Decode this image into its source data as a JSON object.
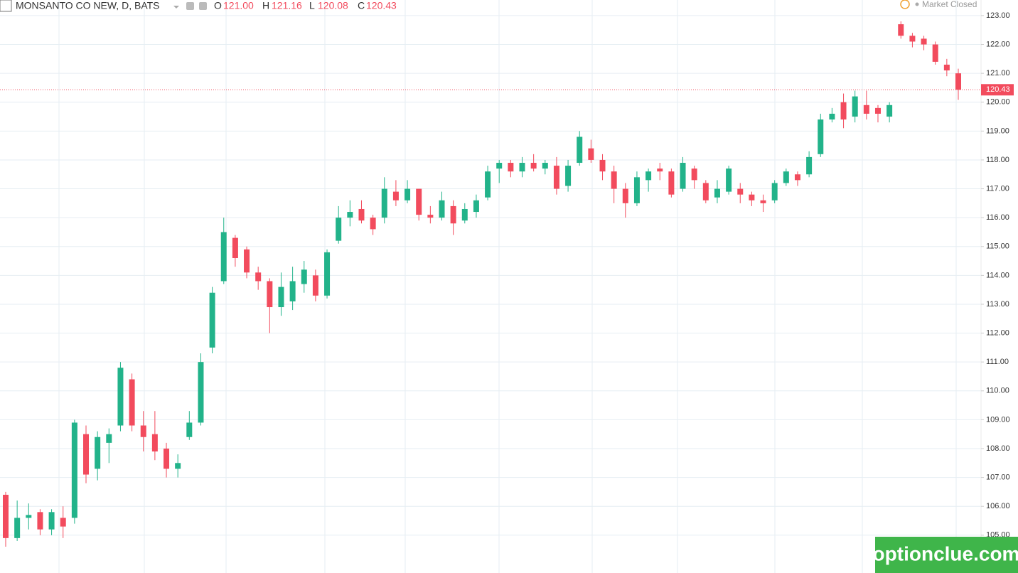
{
  "header": {
    "symbol": "MONSANTO CO NEW, D, BATS",
    "o_label": "O",
    "o_value": "121.00",
    "h_label": "H",
    "h_value": "121.16",
    "l_label": "L",
    "l_value": "120.08",
    "c_label": "C",
    "c_value": "120.43",
    "status": "Market Closed"
  },
  "watermark": "optionclue.com",
  "chart_data": {
    "type": "candlestick",
    "up_color": "#22b38a",
    "down_color": "#f24b5d",
    "grid": true,
    "ylim": [
      103.69,
      123.54
    ],
    "yticks": [
      {
        "value": 105,
        "label": "105.00"
      },
      {
        "value": 106,
        "label": "106.00"
      },
      {
        "value": 107,
        "label": "107.00"
      },
      {
        "value": 108,
        "label": "108.00"
      },
      {
        "value": 109,
        "label": "109.00"
      },
      {
        "value": 110,
        "label": "110.00"
      },
      {
        "value": 111,
        "label": "111.00"
      },
      {
        "value": 112,
        "label": "112.00"
      },
      {
        "value": 113,
        "label": "113.00"
      },
      {
        "value": 114,
        "label": "114.00"
      },
      {
        "value": 115,
        "label": "115.00"
      },
      {
        "value": 116,
        "label": "116.00"
      },
      {
        "value": 117,
        "label": "117.00"
      },
      {
        "value": 118,
        "label": "118.00"
      },
      {
        "value": 119,
        "label": "119.00"
      },
      {
        "value": 120,
        "label": "120.00"
      },
      {
        "value": 121,
        "label": "121.00"
      },
      {
        "value": 122,
        "label": "122.00"
      },
      {
        "value": 123,
        "label": "123.00"
      }
    ],
    "open": [
      106.4,
      104.9,
      105.6,
      105.8,
      105.2,
      105.6,
      105.6,
      108.5,
      107.3,
      108.2,
      108.8,
      110.4,
      108.8,
      108.5,
      108.0,
      107.3,
      108.4,
      108.9,
      111.5,
      113.8,
      115.3,
      114.9,
      114.1,
      113.8,
      112.9,
      113.1,
      113.7,
      114.0,
      113.3,
      115.2,
      116.0,
      116.3,
      116.0,
      116.0,
      116.9,
      116.6,
      117.0,
      116.1,
      116.0,
      116.4,
      115.9,
      116.2,
      116.7,
      117.7,
      117.9,
      117.6,
      117.9,
      117.7,
      117.8,
      117.1,
      117.9,
      118.4,
      118.0,
      117.6,
      117.0,
      116.5,
      117.3,
      117.7,
      117.6,
      117.0,
      117.7,
      117.2,
      116.7,
      116.9,
      117.0,
      116.8,
      116.6,
      116.6,
      117.2,
      117.5,
      117.5,
      118.2,
      119.4,
      120.0,
      119.5,
      119.9,
      119.8,
      119.5,
      122.7,
      122.3,
      122.2,
      122.0,
      121.3,
      121.0
    ],
    "high": [
      106.5,
      106.2,
      106.1,
      105.9,
      105.9,
      106.0,
      109.0,
      108.8,
      108.6,
      108.7,
      111.0,
      110.6,
      109.3,
      109.3,
      108.2,
      107.8,
      109.3,
      111.3,
      113.6,
      116.0,
      115.4,
      115.0,
      114.3,
      113.9,
      114.1,
      114.3,
      114.5,
      114.2,
      114.9,
      116.4,
      116.6,
      116.6,
      116.1,
      117.4,
      117.3,
      117.3,
      117.0,
      116.4,
      116.9,
      116.6,
      116.5,
      116.8,
      117.8,
      118.0,
      118.0,
      118.1,
      118.2,
      118.0,
      118.1,
      118.0,
      119.0,
      118.7,
      118.2,
      117.8,
      117.2,
      117.6,
      117.7,
      117.9,
      117.7,
      118.1,
      117.8,
      117.3,
      117.3,
      117.8,
      117.2,
      116.9,
      116.8,
      117.3,
      117.7,
      117.6,
      118.3,
      119.6,
      119.8,
      120.3,
      120.4,
      120.4,
      119.9,
      120.0,
      122.8,
      122.4,
      122.3,
      122.1,
      121.5,
      121.16
    ],
    "low": [
      104.6,
      104.8,
      105.2,
      105.0,
      105.0,
      104.9,
      105.4,
      106.8,
      106.9,
      107.5,
      108.6,
      108.6,
      107.9,
      107.6,
      107.0,
      107.0,
      108.3,
      108.8,
      111.3,
      113.7,
      114.3,
      113.9,
      113.5,
      112.0,
      112.6,
      112.8,
      113.4,
      113.1,
      113.2,
      115.1,
      115.7,
      115.8,
      115.4,
      115.8,
      116.4,
      116.5,
      115.9,
      115.8,
      115.9,
      115.4,
      115.8,
      116.0,
      116.6,
      117.2,
      117.4,
      117.4,
      117.6,
      117.5,
      116.8,
      116.9,
      117.8,
      117.9,
      117.3,
      116.5,
      116.0,
      116.4,
      116.9,
      117.3,
      116.7,
      116.9,
      117.0,
      116.5,
      116.5,
      116.8,
      116.5,
      116.4,
      116.2,
      116.5,
      117.1,
      117.1,
      117.4,
      118.1,
      119.3,
      119.1,
      119.3,
      119.4,
      119.3,
      119.3,
      122.2,
      121.9,
      121.8,
      121.3,
      120.9,
      120.08
    ],
    "close": [
      104.9,
      105.6,
      105.7,
      105.2,
      105.8,
      105.3,
      108.9,
      107.1,
      108.4,
      108.5,
      110.8,
      108.8,
      108.4,
      107.9,
      107.3,
      107.5,
      108.9,
      111.0,
      113.4,
      115.5,
      114.6,
      114.1,
      113.8,
      112.9,
      113.6,
      113.8,
      114.2,
      113.3,
      114.8,
      116.0,
      116.2,
      115.9,
      115.6,
      117.0,
      116.6,
      117.0,
      116.1,
      116.0,
      116.6,
      115.8,
      116.3,
      116.6,
      117.6,
      117.9,
      117.6,
      117.9,
      117.7,
      117.9,
      117.0,
      117.8,
      118.8,
      118.0,
      117.6,
      117.0,
      116.5,
      117.4,
      117.6,
      117.6,
      116.8,
      117.9,
      117.3,
      116.6,
      117.0,
      117.7,
      116.8,
      116.6,
      116.5,
      117.2,
      117.6,
      117.3,
      118.1,
      119.4,
      119.6,
      119.4,
      120.2,
      119.6,
      119.6,
      119.9,
      122.3,
      122.1,
      122.0,
      121.4,
      121.1,
      120.43
    ]
  }
}
